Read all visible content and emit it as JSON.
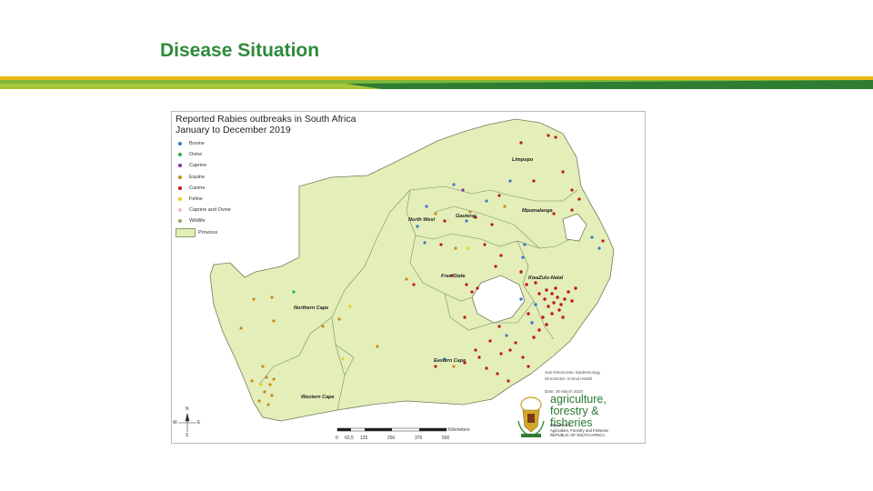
{
  "slide": {
    "title": "Disease Situation"
  },
  "map": {
    "title_line1": "Reported Rabies outbreaks in South Africa",
    "title_line2": "January to December 2019",
    "legend": [
      {
        "label": "Bovine",
        "color": "#3a78c8"
      },
      {
        "label": "Ovine",
        "color": "#27b24a"
      },
      {
        "label": "Caprine",
        "color": "#8a2ca8"
      },
      {
        "label": "Equine",
        "color": "#c88a1a"
      },
      {
        "label": "Canine",
        "color": "#c0141c"
      },
      {
        "label": "Feline",
        "color": "#e8d21a"
      },
      {
        "label": "Caprine and Ovine",
        "color": "#f0b8c8"
      },
      {
        "label": "Wildlife",
        "color": "#a0a060"
      }
    ],
    "legend_province": "Province",
    "provinces": [
      {
        "name": "Limpopo"
      },
      {
        "name": "Mpumalanga"
      },
      {
        "name": "Gauteng"
      },
      {
        "name": "North West"
      },
      {
        "name": "Free State"
      },
      {
        "name": "KwaZulu-Natal"
      },
      {
        "name": "Northern Cape"
      },
      {
        "name": "Eastern Cape"
      },
      {
        "name": "Western Cape"
      }
    ],
    "credits": [
      "Sub-Directorate: Epidemiology",
      "Directorate: Animal Health",
      "",
      "Date: 30 March 2020"
    ],
    "scale": {
      "ticks": [
        "0",
        "62,5",
        "125",
        "250",
        "375",
        "500"
      ],
      "unit": "Kilometers"
    },
    "compass": {
      "n": "N",
      "e": "E",
      "s": "S",
      "w": "W"
    }
  },
  "logo": {
    "line1": "agriculture,",
    "line2": "forestry & fisheries",
    "sub1": "Department:",
    "sub2": "Agriculture, Forestry and Fisheries",
    "sub3": "REPUBLIC OF SOUTH AFRICA"
  }
}
